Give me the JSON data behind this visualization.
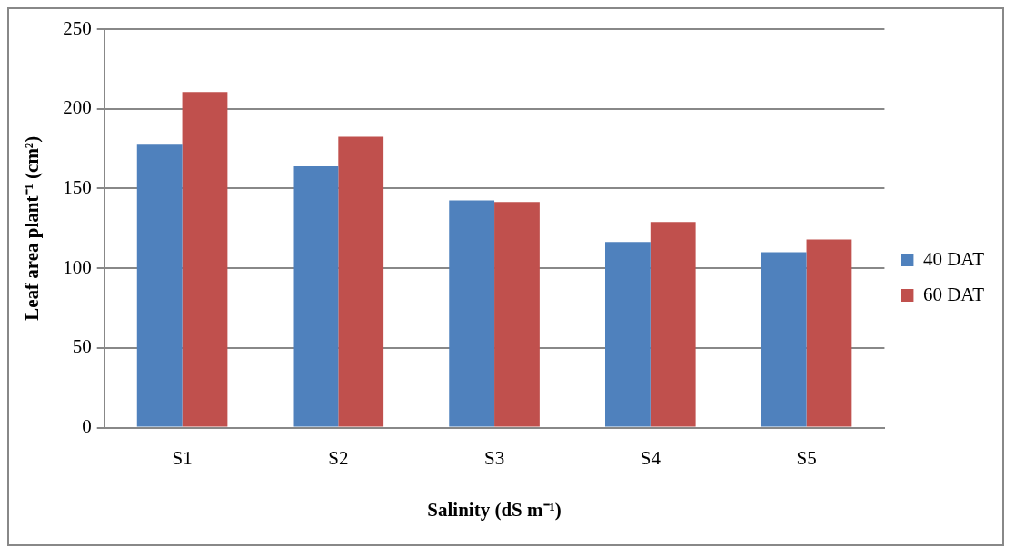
{
  "chart_data": {
    "type": "bar",
    "xlabel": "Salinity (dS m⁻¹)",
    "ylabel": "Leaf area plant⁻¹ (cm²)",
    "categories": [
      "S1",
      "S2",
      "S3",
      "S4",
      "S5"
    ],
    "series": [
      {
        "name": "40 DAT",
        "color": "#4f81bd",
        "values": [
          177.5,
          164,
          142.5,
          116.5,
          110
        ]
      },
      {
        "name": "60 DAT",
        "color": "#c0504d",
        "values": [
          210.5,
          182.5,
          141.5,
          129,
          118
        ]
      }
    ],
    "ylim": [
      0,
      250
    ],
    "yticks": [
      0,
      50,
      100,
      150,
      200,
      250
    ],
    "grid": "y",
    "legend": "right"
  }
}
